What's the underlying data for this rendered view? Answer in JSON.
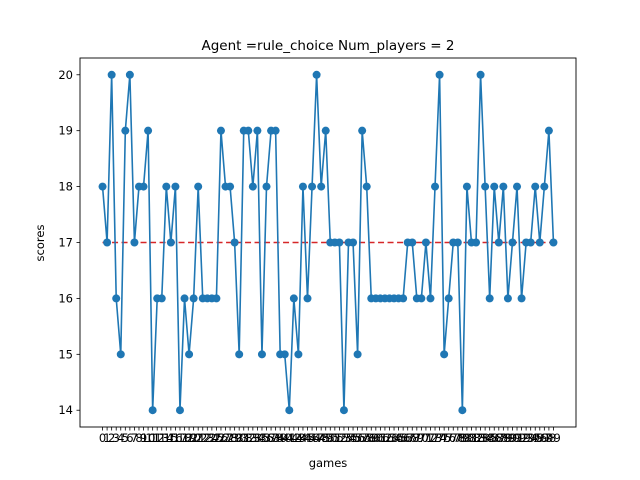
{
  "chart_data": {
    "type": "line",
    "title": "Agent =rule_choice Num_players = 2",
    "xlabel": "games",
    "ylabel": "scores",
    "x": [
      0,
      1,
      2,
      3,
      4,
      5,
      6,
      7,
      8,
      9,
      10,
      11,
      12,
      13,
      14,
      15,
      16,
      17,
      18,
      19,
      20,
      21,
      22,
      23,
      24,
      25,
      26,
      27,
      28,
      29,
      30,
      31,
      32,
      33,
      34,
      35,
      36,
      37,
      38,
      39,
      40,
      41,
      42,
      43,
      44,
      45,
      46,
      47,
      48,
      49,
      50,
      51,
      52,
      53,
      54,
      55,
      56,
      57,
      58,
      59,
      60,
      61,
      62,
      63,
      64,
      65,
      66,
      67,
      68,
      69,
      70,
      71,
      72,
      73,
      74,
      75,
      76,
      77,
      78,
      79,
      80,
      81,
      82,
      83,
      84,
      85,
      86,
      87,
      88,
      89,
      90,
      91,
      92,
      93,
      94,
      95,
      96,
      97,
      98,
      99
    ],
    "xticks": [
      "0",
      "1",
      "2",
      "3",
      "4",
      "5",
      "6",
      "7",
      "8",
      "9",
      "10",
      "11",
      "12",
      "13",
      "14",
      "15",
      "16",
      "17",
      "18",
      "19",
      "20",
      "21",
      "22",
      "23",
      "24",
      "25",
      "26",
      "27",
      "28",
      "29",
      "30",
      "31",
      "32",
      "33",
      "34",
      "35",
      "36",
      "37",
      "38",
      "39",
      "40",
      "41",
      "42",
      "43",
      "44",
      "45",
      "46",
      "47",
      "48",
      "49",
      "50",
      "51",
      "52",
      "53",
      "54",
      "55",
      "56",
      "57",
      "58",
      "59",
      "60",
      "61",
      "62",
      "63",
      "64",
      "65",
      "66",
      "67",
      "68",
      "69",
      "70",
      "71",
      "72",
      "73",
      "74",
      "75",
      "76",
      "77",
      "78",
      "79",
      "80",
      "81",
      "82",
      "83",
      "84",
      "85",
      "86",
      "87",
      "88",
      "89",
      "90",
      "91",
      "92",
      "93",
      "94",
      "95",
      "96",
      "97",
      "98",
      "99"
    ],
    "xlim": [
      -4.95,
      103.95
    ],
    "ylim": [
      13.7,
      20.3
    ],
    "yticks": [
      "14",
      "15",
      "16",
      "17",
      "18",
      "19",
      "20"
    ],
    "series": [
      {
        "values": [
          18,
          17,
          20,
          16,
          15,
          19,
          20,
          17,
          18,
          18,
          19,
          14,
          16,
          16,
          18,
          17,
          18,
          14,
          16,
          15,
          16,
          18,
          16,
          16,
          16,
          16,
          19,
          18,
          18,
          17,
          15,
          19,
          19,
          18,
          19,
          15,
          18,
          19,
          19,
          15,
          15,
          14,
          16,
          15,
          18,
          16,
          18,
          20,
          18,
          19,
          17,
          17,
          17,
          14,
          17,
          17,
          15,
          19,
          18,
          16,
          16,
          16,
          16,
          16,
          16,
          16,
          16,
          17,
          17,
          16,
          16,
          17,
          16,
          18,
          20,
          15,
          16,
          17,
          17,
          14,
          18,
          17,
          17,
          20,
          18,
          16,
          18,
          17,
          18,
          16,
          17,
          18,
          16,
          17,
          17,
          18,
          17,
          18,
          19,
          17
        ],
        "color": "#1f77b4",
        "marker": "circle"
      }
    ],
    "reference_line": {
      "y": 17,
      "color": "#d62728",
      "style": "dashed"
    },
    "grid": false,
    "legend": false
  }
}
